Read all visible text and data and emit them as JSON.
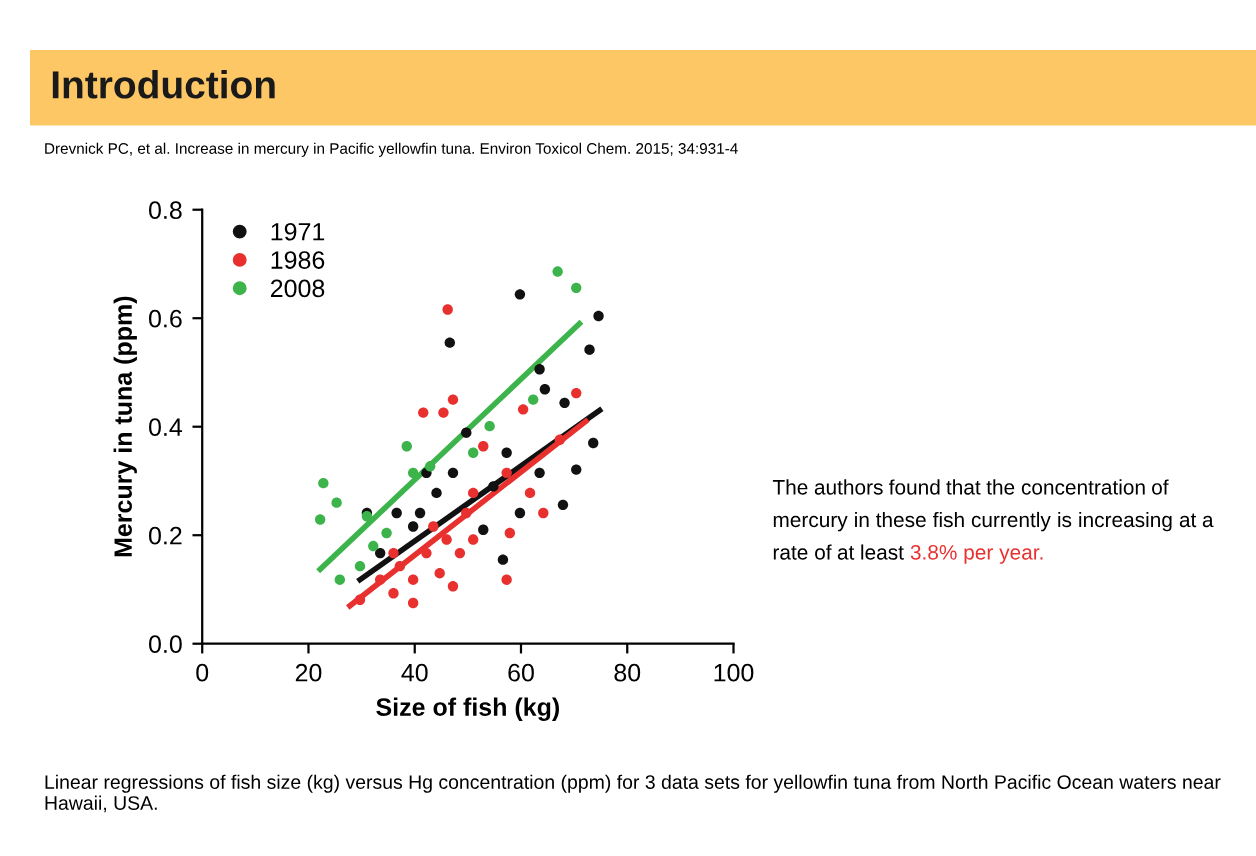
{
  "chart_data": {
    "type": "scatter",
    "title": "Introduction",
    "subtitle": "Drevnick PC, et al. Increase in mercury in Pacific yellowfin tuna. Environ Toxicol Chem. 2015; 34:931-4",
    "xlabel": "Size of fish (kg)",
    "ylabel": "Mercury in tuna (ppm)",
    "xlim": [
      0,
      100
    ],
    "xticks": [
      0,
      20,
      40,
      60,
      80,
      100
    ],
    "ylim": [
      0,
      0.8
    ],
    "yticks": [
      {
        "value": 0,
        "label": "0.0"
      },
      {
        "value": 0.2,
        "label": "0.2"
      },
      {
        "value": 0.4,
        "label": "0.4"
      },
      {
        "value": 0.6,
        "label": "0.6"
      },
      {
        "value": 0.8,
        "label": "0.8"
      }
    ],
    "grid": false,
    "legend": "top left",
    "marker": "circle",
    "annotations": [
      "The authors found that the concentration of mercury in these fish currently is increasing at a rate of at least",
      "3.8% per year.",
      "Linear regressions of fish size (kg) versus Hg concentration (ppm) for 3 data sets for yellowfin tuna from North Pacific Ocean waters near Hawaii, USA."
    ],
    "series": [
      {
        "name": "1971",
        "color": "#111111",
        "x": [
          59.8,
          46.6,
          74.6,
          72.9,
          63.5,
          64.5,
          68.2,
          73.6,
          70.4,
          67.9,
          63.5,
          59.8,
          56.6,
          52.9,
          47.2,
          44.1,
          41,
          36.6,
          42.2,
          31,
          49.7,
          54.8,
          39.7,
          33.5,
          57.3
        ],
        "values": [
          0.644,
          0.555,
          0.604,
          0.542,
          0.506,
          0.469,
          0.444,
          0.37,
          0.321,
          0.256,
          0.315,
          0.241,
          0.155,
          0.21,
          0.315,
          0.278,
          0.241,
          0.241,
          0.315,
          0.241,
          0.389,
          0.29,
          0.216,
          0.167,
          0.352
        ]
      },
      {
        "name": "1986",
        "color": "#e8312f",
        "x": [
          46.2,
          47.2,
          45.4,
          41.6,
          60.4,
          52.9,
          57.3,
          61.7,
          64.2,
          57.9,
          57.3,
          51,
          49.7,
          46,
          42.2,
          39.7,
          36,
          33.5,
          29.7,
          39.7,
          44.7,
          48.5,
          43.5,
          37.2,
          70.4,
          67.3,
          47.2,
          51,
          36
        ],
        "values": [
          0.616,
          0.45,
          0.426,
          0.426,
          0.432,
          0.364,
          0.315,
          0.278,
          0.241,
          0.204,
          0.118,
          0.278,
          0.241,
          0.192,
          0.167,
          0.118,
          0.093,
          0.118,
          0.081,
          0.075,
          0.13,
          0.167,
          0.216,
          0.143,
          0.462,
          0.376,
          0.106,
          0.192,
          0.167
        ]
      },
      {
        "name": "2008",
        "color": "#3cb44b",
        "x": [
          66.9,
          70.4,
          22.8,
          25.3,
          22.2,
          31,
          38.5,
          39.7,
          54.1,
          51,
          34.7,
          32.2,
          42.9,
          62.3,
          25.9,
          29.7
        ],
        "values": [
          0.686,
          0.656,
          0.296,
          0.26,
          0.229,
          0.235,
          0.364,
          0.315,
          0.401,
          0.352,
          0.204,
          0.18,
          0.327,
          0.45,
          0.118,
          0.143
        ]
      },
      {
        "type": "line",
        "color": "#3cb44b",
        "marker": "none",
        "x": [
          22.2,
          71
        ],
        "values": [
          0.137,
          0.59
        ]
      },
      {
        "type": "line",
        "color": "#111111",
        "marker": "none",
        "x": [
          29.7,
          74.8
        ],
        "values": [
          0.118,
          0.43
        ]
      },
      {
        "type": "line",
        "color": "#e8312f",
        "marker": "none",
        "x": [
          27.8,
          72.2
        ],
        "values": [
          0.07,
          0.41
        ]
      }
    ]
  }
}
